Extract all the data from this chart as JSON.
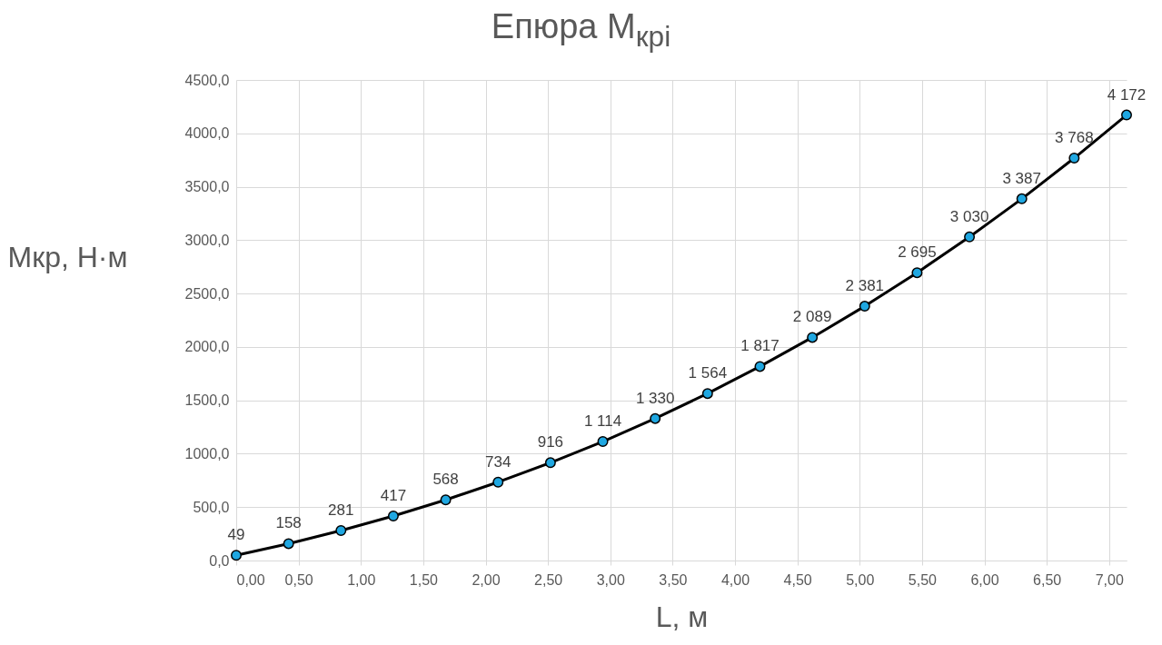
{
  "chart_data": {
    "type": "line",
    "title": "Епюра M$_{кpi}$",
    "xlabel": "L, м",
    "ylabel": "Мкр, Н·м",
    "x": [
      0,
      0.42,
      0.84,
      1.26,
      1.68,
      2.1,
      2.52,
      2.94,
      3.36,
      3.78,
      4.2,
      4.62,
      5.04,
      5.46,
      5.88,
      6.3,
      6.72,
      7.14
    ],
    "series": [
      {
        "color": "#000000",
        "values": [
          49,
          158,
          281,
          417,
          568,
          734,
          916,
          1114,
          1330,
          1564,
          1817,
          2089,
          2381,
          2695,
          3030,
          3387,
          3768,
          4172
        ],
        "value_labels": [
          "49",
          "158",
          "281",
          "417",
          "568",
          "734",
          "916",
          "1 114",
          "1 330",
          "1 564",
          "1 817",
          "2 089",
          "2 381",
          "2 695",
          "3 030",
          "3 387",
          "3 768",
          "4 172"
        ]
      }
    ],
    "xlim": [
      0,
      7.14
    ],
    "ylim": [
      0,
      4500
    ],
    "xticks": [
      {
        "value": 0,
        "label": "0,00"
      },
      {
        "value": 0.5,
        "label": "0,50"
      },
      {
        "value": 1,
        "label": "1,00"
      },
      {
        "value": 1.5,
        "label": "1,50"
      },
      {
        "value": 2,
        "label": "2,00"
      },
      {
        "value": 2.5,
        "label": "2,50"
      },
      {
        "value": 3,
        "label": "3,00"
      },
      {
        "value": 3.5,
        "label": "3,50"
      },
      {
        "value": 4,
        "label": "4,00"
      },
      {
        "value": 4.5,
        "label": "4,50"
      },
      {
        "value": 5,
        "label": "5,00"
      },
      {
        "value": 5.5,
        "label": "5,50"
      },
      {
        "value": 6,
        "label": "6,00"
      },
      {
        "value": 6.5,
        "label": "6,50"
      },
      {
        "value": 7,
        "label": "7,00"
      }
    ],
    "yticks": [
      {
        "value": 0,
        "label": "0,0"
      },
      {
        "value": 500,
        "label": "500,0"
      },
      {
        "value": 1000,
        "label": "1000,0"
      },
      {
        "value": 1500,
        "label": "1500,0"
      },
      {
        "value": 2000,
        "label": "2000,0"
      },
      {
        "value": 2500,
        "label": "2500,0"
      },
      {
        "value": 3000,
        "label": "3000,0"
      },
      {
        "value": 3500,
        "label": "3500,0"
      },
      {
        "value": 4000,
        "label": "4000,0"
      },
      {
        "value": 4500,
        "label": "4500,0"
      }
    ],
    "grid": true,
    "marker": "circle",
    "line_style": "solid"
  }
}
